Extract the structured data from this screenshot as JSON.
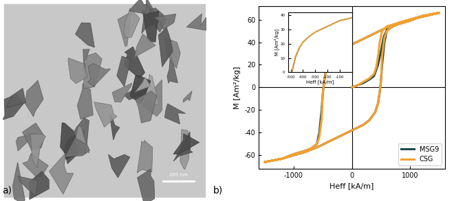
{
  "panel_labels": [
    "a)",
    "b)"
  ],
  "image": {
    "scale_bar": "200 nm"
  },
  "chart_data": [
    {
      "type": "line",
      "x_label": "Heff [kA/m]",
      "y_label": "M [Am²/kg]",
      "xlim": [
        -1600,
        1600
      ],
      "xticks": [
        -1000,
        0,
        1000
      ],
      "ylim": [
        -72,
        72
      ],
      "yticks": [
        -60,
        -40,
        -20,
        0,
        20,
        40,
        60
      ],
      "legend": "lower right",
      "series": [
        {
          "name": "MSG9",
          "color": "#1b4d4f",
          "x": [
            0,
            100,
            200,
            300,
            380,
            450,
            500,
            550,
            620,
            800,
            1000,
            1500,
            1200,
            1000,
            800,
            600,
            400,
            200,
            0,
            -200,
            -300,
            -400,
            -450,
            -480,
            -500,
            -520,
            -560,
            -600,
            -700,
            -800,
            -1000,
            -1200,
            -1500,
            -1200,
            -1000,
            -800,
            -600,
            -400,
            -200,
            0,
            200,
            300,
            400,
            450,
            480,
            500,
            520,
            560,
            600,
            700,
            800,
            1000,
            1200,
            1500
          ],
          "values": [
            0,
            2,
            4,
            7,
            10,
            20,
            32,
            45,
            53,
            57,
            60,
            66,
            63,
            60,
            57,
            53,
            48,
            43,
            38,
            33,
            29,
            22,
            14,
            4,
            -6,
            -20,
            -40,
            -50,
            -54,
            -56,
            -59,
            -63,
            -66,
            -63,
            -60,
            -57,
            -53,
            -48,
            -43,
            -38,
            -33,
            -29,
            -22,
            -14,
            -4,
            6,
            20,
            40,
            50,
            54,
            56,
            59,
            63,
            66
          ]
        },
        {
          "name": "CSG",
          "color": "#f5a02e",
          "x": [
            0,
            100,
            200,
            300,
            380,
            420,
            450,
            480,
            520,
            600,
            800,
            1000,
            1500,
            1200,
            1000,
            800,
            600,
            400,
            200,
            0,
            -200,
            -300,
            -400,
            -450,
            -480,
            -500,
            -520,
            -560,
            -600,
            -700,
            -800,
            -1000,
            -1200,
            -1500,
            -1200,
            -1000,
            -800,
            -600,
            -400,
            -200,
            0,
            200,
            300,
            400,
            450,
            480,
            500,
            520,
            560,
            600,
            700,
            800,
            1000,
            1200,
            1500
          ],
          "values": [
            0,
            2,
            5,
            8,
            12,
            18,
            28,
            40,
            50,
            54,
            57,
            60,
            66,
            63,
            60,
            57,
            53,
            48,
            43,
            38,
            33,
            29,
            22,
            14,
            3,
            -5,
            -28,
            -44,
            -50,
            -54,
            -56,
            -59,
            -63,
            -66,
            -63,
            -60,
            -57,
            -53,
            -48,
            -43,
            -38,
            -33,
            -29,
            -22,
            -14,
            -3,
            5,
            28,
            44,
            50,
            54,
            56,
            59,
            63,
            66
          ]
        }
      ]
    },
    {
      "type": "line",
      "x_label": "Heff [kA/m]",
      "y_label": "M [Am²/kg]",
      "xlim": [
        -520,
        0
      ],
      "xticks": [
        -500,
        -400,
        -300,
        -200,
        -100
      ],
      "ylim": [
        0,
        42
      ],
      "yticks": [
        0,
        10,
        20,
        30,
        40
      ],
      "series": [
        {
          "name": "MSG9",
          "color": "#1b4d4f",
          "x": [
            -490,
            -480,
            -460,
            -430,
            -400,
            -350,
            -300,
            -250,
            -200,
            -150,
            -100,
            -50,
            0
          ],
          "values": [
            0,
            4,
            11,
            17,
            21,
            25,
            28,
            30,
            32,
            34,
            36,
            37,
            38
          ]
        },
        {
          "name": "CSG",
          "color": "#f5a02e",
          "x": [
            -492,
            -482,
            -462,
            -432,
            -400,
            -350,
            -300,
            -250,
            -200,
            -150,
            -100,
            -50,
            0
          ],
          "values": [
            0,
            4,
            11,
            17,
            21,
            25,
            28,
            30,
            32,
            34,
            36,
            37,
            38
          ]
        }
      ]
    }
  ]
}
